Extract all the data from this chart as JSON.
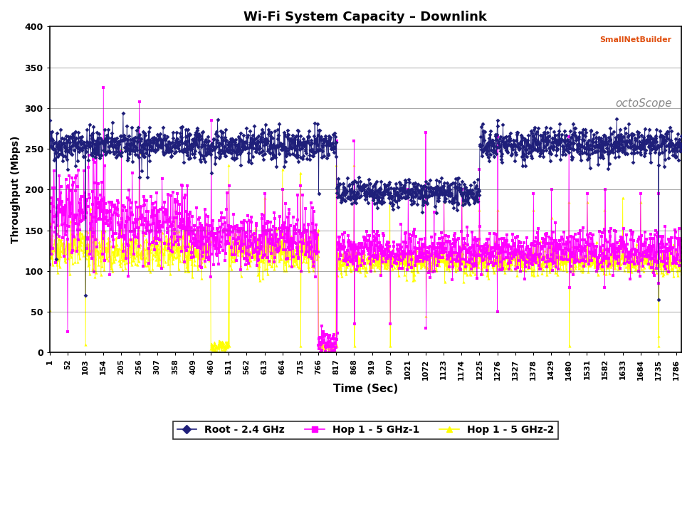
{
  "title": "Wi-Fi System Capacity – Downlink",
  "xlabel": "Time (Sec)",
  "ylabel": "Throughput (Mbps)",
  "xlim": [
    1,
    1800
  ],
  "ylim": [
    0,
    400
  ],
  "yticks": [
    0,
    50,
    100,
    150,
    200,
    250,
    300,
    350,
    400
  ],
  "xtick_labels": [
    "1",
    "52",
    "103",
    "154",
    "205",
    "256",
    "307",
    "358",
    "409",
    "460",
    "511",
    "562",
    "613",
    "664",
    "715",
    "766",
    "817",
    "868",
    "919",
    "970",
    "1021",
    "1072",
    "1123",
    "1174",
    "1225",
    "1276",
    "1327",
    "1378",
    "1429",
    "1480",
    "1531",
    "1582",
    "1633",
    "1684",
    "1735",
    "1786"
  ],
  "xtick_positions": [
    1,
    52,
    103,
    154,
    205,
    256,
    307,
    358,
    409,
    460,
    511,
    562,
    613,
    664,
    715,
    766,
    817,
    868,
    919,
    970,
    1021,
    1072,
    1123,
    1174,
    1225,
    1276,
    1327,
    1378,
    1429,
    1480,
    1531,
    1582,
    1633,
    1684,
    1735,
    1786
  ],
  "series": {
    "root": {
      "label": "Root - 2.4 GHz",
      "color": "#1F1F7A",
      "marker": "D",
      "markersize": 3,
      "linewidth": 0.6
    },
    "hop1": {
      "label": "Hop 1 - 5 GHz-1",
      "color": "#FF00FF",
      "marker": "s",
      "markersize": 3,
      "linewidth": 0.6
    },
    "hop2": {
      "label": "Hop 1 - 5 GHz-2",
      "color": "#FFFF00",
      "marker": "^",
      "markersize": 3,
      "linewidth": 0.6
    }
  },
  "grid_color": "#000000",
  "grid_alpha": 0.3,
  "background_color": "#FFFFFF",
  "seed": 42
}
